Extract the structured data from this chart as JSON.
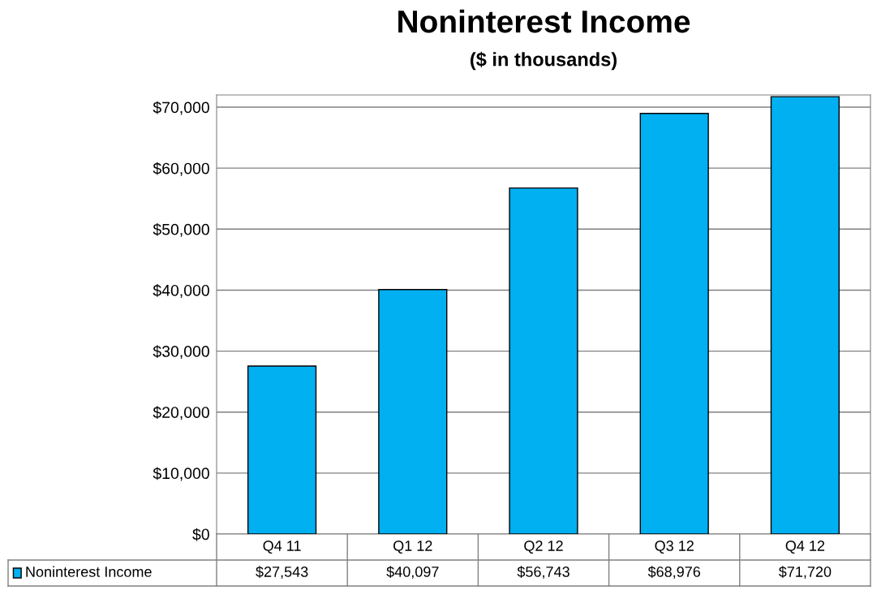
{
  "chart_data": {
    "type": "bar",
    "title": "Noninterest Income",
    "subtitle": "($ in thousands)",
    "categories": [
      "Q4 11",
      "Q1 12",
      "Q2 12",
      "Q3 12",
      "Q4 12"
    ],
    "series": [
      {
        "name": "Noninterest Income",
        "color": "#00b0f0",
        "values": [
          27543,
          40097,
          56743,
          68976,
          71720
        ],
        "value_labels": [
          "$27,543",
          "$40,097",
          "$56,743",
          "$68,976",
          "$71,720"
        ]
      }
    ],
    "ylim": [
      0,
      72000
    ],
    "yticks": [
      {
        "value": 0,
        "label": "$0"
      },
      {
        "value": 10000,
        "label": "$10,000"
      },
      {
        "value": 20000,
        "label": "$20,000"
      },
      {
        "value": 30000,
        "label": "$30,000"
      },
      {
        "value": 40000,
        "label": "$40,000"
      },
      {
        "value": 50000,
        "label": "$50,000"
      },
      {
        "value": 60000,
        "label": "$60,000"
      },
      {
        "value": 70000,
        "label": "$70,000"
      }
    ],
    "grid": "y",
    "legend": "bottom left"
  }
}
